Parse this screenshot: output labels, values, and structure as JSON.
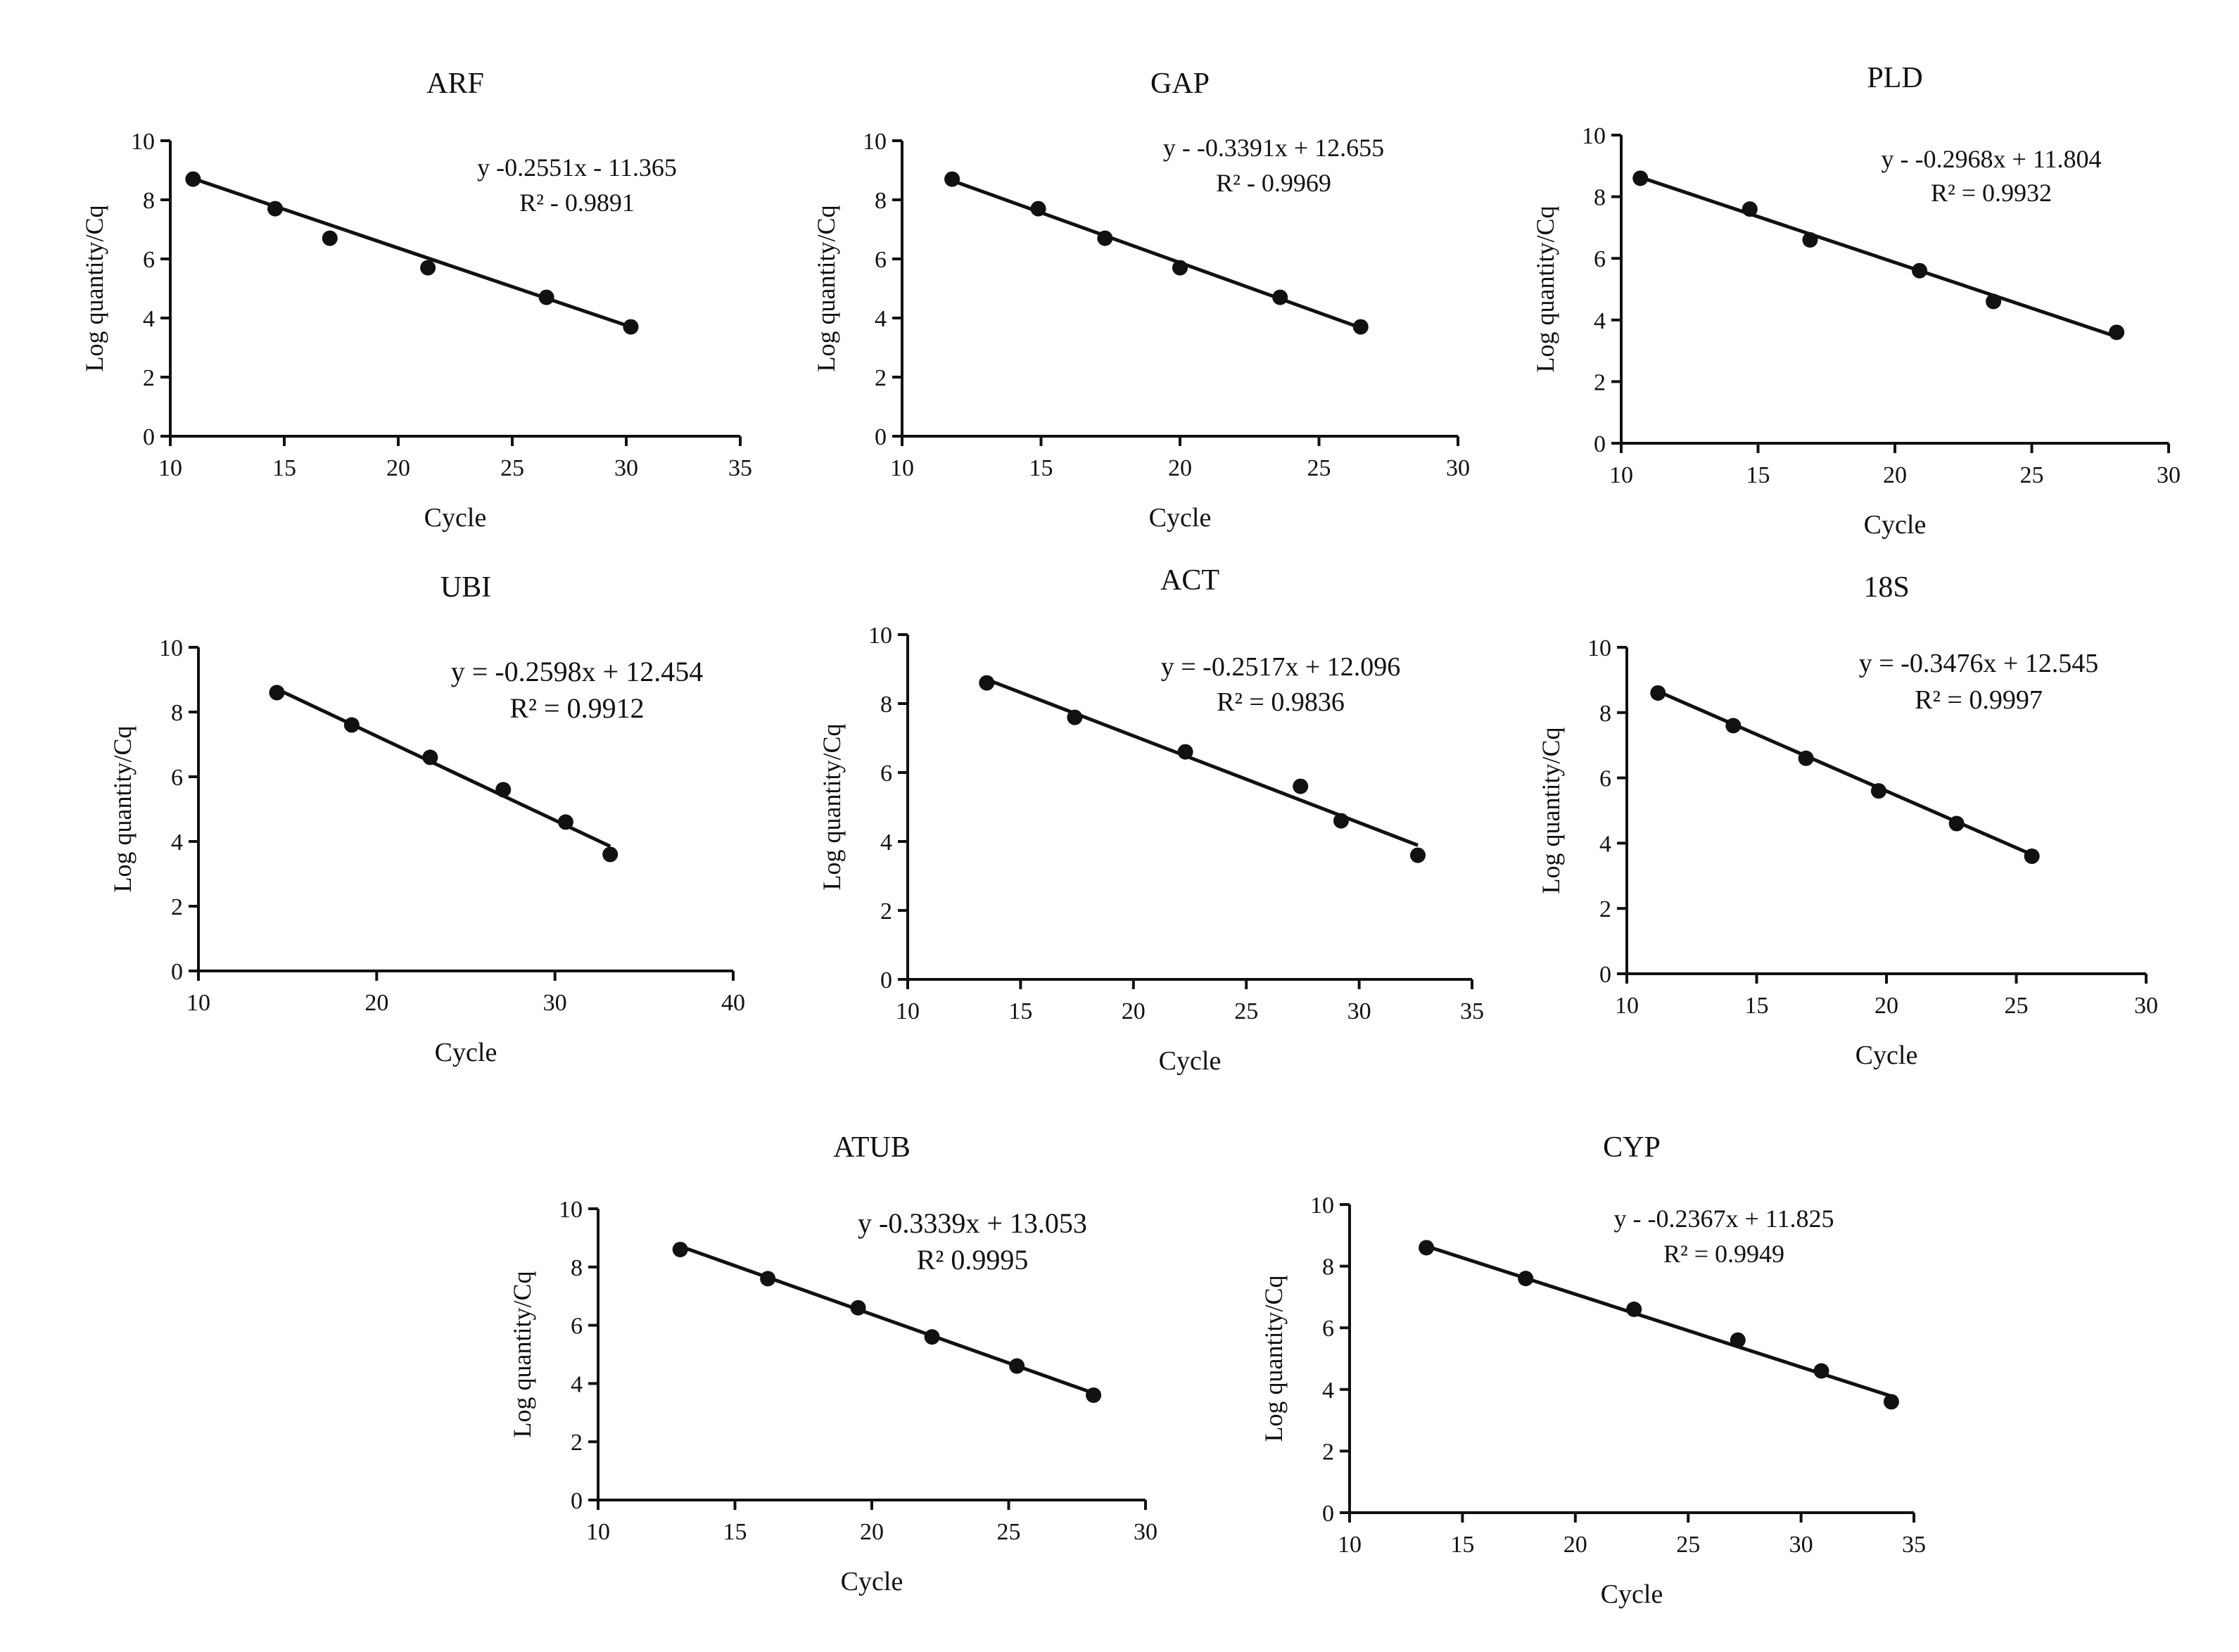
{
  "chart_data": [
    {
      "type": "scatter",
      "title": "ARF",
      "xlabel": "Cycle",
      "ylabel": "Log quantity/Cq",
      "xlim": [
        10,
        35
      ],
      "ylim": [
        0,
        10
      ],
      "xticks": [
        10,
        15,
        20,
        25,
        30,
        35
      ],
      "yticks": [
        0,
        2,
        4,
        6,
        8,
        10
      ],
      "points": [
        [
          11.0,
          8.7
        ],
        [
          14.6,
          7.7
        ],
        [
          17.0,
          6.7
        ],
        [
          21.3,
          5.7
        ],
        [
          26.5,
          4.7
        ],
        [
          30.2,
          3.7
        ]
      ],
      "trendline": {
        "x": [
          11.0,
          30.2
        ],
        "y": [
          8.72,
          3.7
        ]
      },
      "equation": "y   -0.2551x - 11.365",
      "r_squared": "R² - 0.9891",
      "grid": false
    },
    {
      "type": "scatter",
      "title": "GAP",
      "xlabel": "Cycle",
      "ylabel": "Log quantity/Cq",
      "xlim": [
        10,
        30
      ],
      "ylim": [
        0,
        10
      ],
      "xticks": [
        10,
        15,
        20,
        25,
        30
      ],
      "yticks": [
        0,
        2,
        4,
        6,
        8,
        10
      ],
      "points": [
        [
          11.8,
          8.7
        ],
        [
          14.9,
          7.7
        ],
        [
          17.3,
          6.7
        ],
        [
          20.0,
          5.7
        ],
        [
          23.6,
          4.7
        ],
        [
          26.5,
          3.7
        ]
      ],
      "trendline": {
        "x": [
          11.8,
          26.5
        ],
        "y": [
          8.65,
          3.67
        ]
      },
      "equation": "y - -0.3391x + 12.655",
      "r_squared": "R² - 0.9969",
      "grid": false
    },
    {
      "type": "scatter",
      "title": "PLD",
      "xlabel": "Cycle",
      "ylabel": "Log quantity/Cq",
      "xlim": [
        10,
        30
      ],
      "ylim": [
        0,
        10
      ],
      "xticks": [
        10,
        15,
        20,
        25,
        30
      ],
      "yticks": [
        0,
        2,
        4,
        6,
        8,
        10
      ],
      "points": [
        [
          10.7,
          8.6
        ],
        [
          14.7,
          7.6
        ],
        [
          16.9,
          6.6
        ],
        [
          20.9,
          5.6
        ],
        [
          23.6,
          4.6
        ],
        [
          28.1,
          3.6
        ]
      ],
      "trendline": {
        "x": [
          10.7,
          28.1
        ],
        "y": [
          8.63,
          3.46
        ]
      },
      "equation": "y - -0.2968x + 11.804",
      "r_squared": "R² = 0.9932",
      "grid": false
    },
    {
      "type": "scatter",
      "title": "UBI",
      "xlabel": "Cycle",
      "ylabel": "Log quantity/Cq",
      "xlim": [
        10,
        40
      ],
      "ylim": [
        0,
        10
      ],
      "xticks": [
        10,
        20,
        30,
        40
      ],
      "yticks": [
        0,
        2,
        4,
        6,
        8,
        10
      ],
      "points": [
        [
          14.4,
          8.6
        ],
        [
          18.6,
          7.6
        ],
        [
          23.0,
          6.6
        ],
        [
          27.1,
          5.6
        ],
        [
          30.6,
          4.6
        ],
        [
          33.1,
          3.6
        ]
      ],
      "trendline": {
        "x": [
          14.4,
          33.1
        ],
        "y": [
          8.71,
          3.85
        ]
      },
      "equation": "y = -0.2598x + 12.454",
      "r_squared": "R² = 0.9912",
      "grid": false
    },
    {
      "type": "scatter",
      "title": "ACT",
      "xlabel": "Cycle",
      "ylabel": "Log quantity/Cq",
      "xlim": [
        10,
        35
      ],
      "ylim": [
        0,
        10
      ],
      "xticks": [
        10,
        15,
        20,
        25,
        30,
        35
      ],
      "yticks": [
        0,
        2,
        4,
        6,
        8,
        10
      ],
      "points": [
        [
          13.5,
          8.6
        ],
        [
          17.4,
          7.6
        ],
        [
          22.3,
          6.6
        ],
        [
          27.4,
          5.6
        ],
        [
          29.2,
          4.6
        ],
        [
          32.6,
          3.6
        ]
      ],
      "trendline": {
        "x": [
          13.5,
          32.6
        ],
        "y": [
          8.7,
          3.89
        ]
      },
      "equation": "y = -0.2517x + 12.096",
      "r_squared": "R² = 0.9836",
      "grid": false
    },
    {
      "type": "scatter",
      "title": "18S",
      "xlabel": "Cycle",
      "ylabel": "Log quantity/Cq",
      "xlim": [
        10,
        30
      ],
      "ylim": [
        0,
        10
      ],
      "xticks": [
        10,
        15,
        20,
        25,
        30
      ],
      "yticks": [
        0,
        2,
        4,
        6,
        8,
        10
      ],
      "points": [
        [
          11.2,
          8.6
        ],
        [
          14.1,
          7.6
        ],
        [
          16.9,
          6.6
        ],
        [
          19.7,
          5.6
        ],
        [
          22.7,
          4.6
        ],
        [
          25.6,
          3.6
        ]
      ],
      "trendline": {
        "x": [
          11.2,
          25.6
        ],
        "y": [
          8.65,
          3.65
        ]
      },
      "equation": "y = -0.3476x + 12.545",
      "r_squared": "R² = 0.9997",
      "grid": false
    },
    {
      "type": "scatter",
      "title": "ATUB",
      "xlabel": "Cycle",
      "ylabel": "Log quantity/Cq",
      "xlim": [
        10,
        30
      ],
      "ylim": [
        0,
        10
      ],
      "xticks": [
        10,
        15,
        20,
        25,
        30
      ],
      "yticks": [
        0,
        2,
        4,
        6,
        8,
        10
      ],
      "points": [
        [
          13.0,
          8.6
        ],
        [
          16.2,
          7.6
        ],
        [
          19.5,
          6.6
        ],
        [
          22.2,
          5.6
        ],
        [
          25.3,
          4.6
        ],
        [
          28.1,
          3.6
        ]
      ],
      "trendline": {
        "x": [
          13.0,
          28.1
        ],
        "y": [
          8.71,
          3.67
        ]
      },
      "equation": "y    -0.3339x + 13.053",
      "r_squared": "R²   0.9995",
      "grid": false
    },
    {
      "type": "scatter",
      "title": "CYP",
      "xlabel": "Cycle",
      "ylabel": "Log quantity/Cq",
      "xlim": [
        10,
        35
      ],
      "ylim": [
        0,
        10
      ],
      "xticks": [
        10,
        15,
        20,
        25,
        30,
        35
      ],
      "yticks": [
        0,
        2,
        4,
        6,
        8,
        10
      ],
      "points": [
        [
          13.4,
          8.6
        ],
        [
          17.8,
          7.6
        ],
        [
          22.6,
          6.6
        ],
        [
          27.2,
          5.6
        ],
        [
          30.9,
          4.6
        ],
        [
          34.0,
          3.6
        ]
      ],
      "trendline": {
        "x": [
          13.4,
          34.0
        ],
        "y": [
          8.65,
          3.78
        ]
      },
      "equation": "y - -0.2367x + 11.825",
      "r_squared": "R² = 0.9949",
      "grid": false
    }
  ]
}
